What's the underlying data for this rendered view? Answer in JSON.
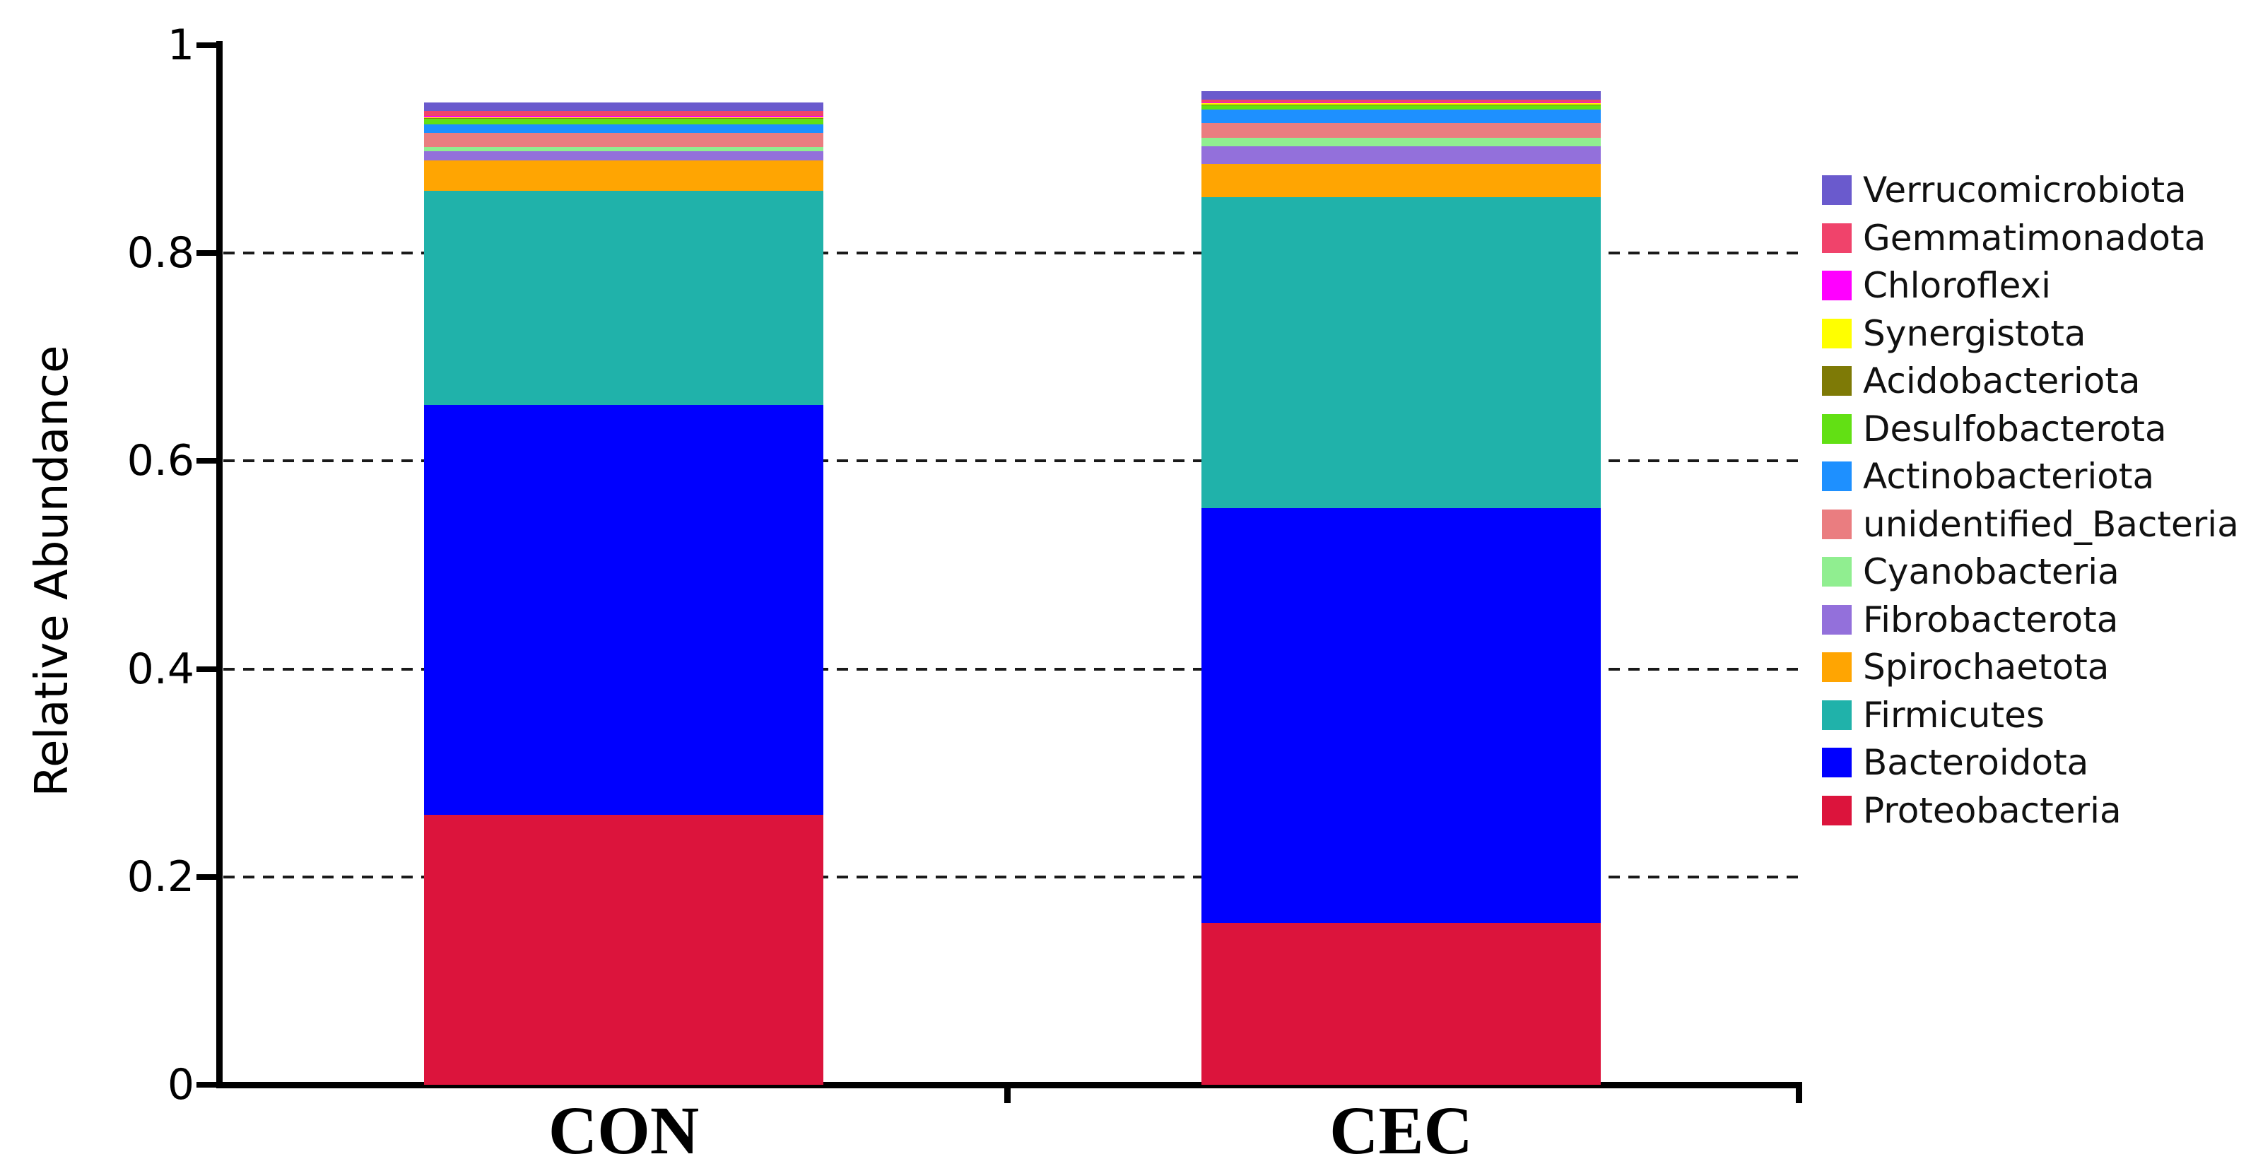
{
  "chart_data": {
    "type": "bar",
    "stacked": true,
    "title": "",
    "xlabel": "",
    "ylabel": "Relative Abundance",
    "ylim": [
      0,
      1
    ],
    "grid": "dashed-horizontal",
    "gridline_values": [
      0.2,
      0.4,
      0.6,
      0.8
    ],
    "yticks": [
      {
        "value": 0,
        "label": "0"
      },
      {
        "value": 0.2,
        "label": "0.2"
      },
      {
        "value": 0.4,
        "label": "0.4"
      },
      {
        "value": 0.6,
        "label": "0.6"
      },
      {
        "value": 0.8,
        "label": "0.8"
      },
      {
        "value": 1,
        "label": "1"
      }
    ],
    "categories": [
      "CON",
      "CEC"
    ],
    "series_note": "series listed bottom-to-top of stack; values are relative abundance per category [CON, CEC]",
    "series": [
      {
        "name": "Proteobacteria",
        "color": "#DC143C",
        "values": [
          0.26,
          0.156
        ]
      },
      {
        "name": "Bacteroidota",
        "color": "#0000FF",
        "values": [
          0.394,
          0.399
        ]
      },
      {
        "name": "Firmicutes",
        "color": "#20B2AA",
        "values": [
          0.206,
          0.299
        ]
      },
      {
        "name": "Spirochaetota",
        "color": "#FFA502",
        "values": [
          0.029,
          0.032
        ]
      },
      {
        "name": "Fibrobacterota",
        "color": "#9370DB",
        "values": [
          0.009,
          0.017
        ]
      },
      {
        "name": "Cyanobacteria",
        "color": "#90EE90",
        "values": [
          0.004,
          0.008
        ]
      },
      {
        "name": "unidentified_Bacteria",
        "color": "#EA7D80",
        "values": [
          0.014,
          0.014
        ]
      },
      {
        "name": "Actinobacteriota",
        "color": "#1E90FF",
        "values": [
          0.008,
          0.013
        ]
      },
      {
        "name": "Desulfobacterota",
        "color": "#62E014",
        "values": [
          0.005,
          0.004
        ]
      },
      {
        "name": "Acidobacteriota",
        "color": "#7E7A06",
        "values": [
          0.001,
          0.001
        ]
      },
      {
        "name": "Synergistota",
        "color": "#FFFF00",
        "values": [
          0.001,
          0.001
        ]
      },
      {
        "name": "Chloroflexi",
        "color": "#FF00FF",
        "values": [
          0.001,
          0.001
        ]
      },
      {
        "name": "Gemmatimonadota",
        "color": "#F0436B",
        "values": [
          0.005,
          0.003
        ]
      },
      {
        "name": "Verrucomicrobiota",
        "color": "#6A5ACD",
        "values": [
          0.008,
          0.008
        ]
      }
    ],
    "legend": {
      "position": "right",
      "order": "top-to-bottom is reverse of stack order"
    }
  }
}
